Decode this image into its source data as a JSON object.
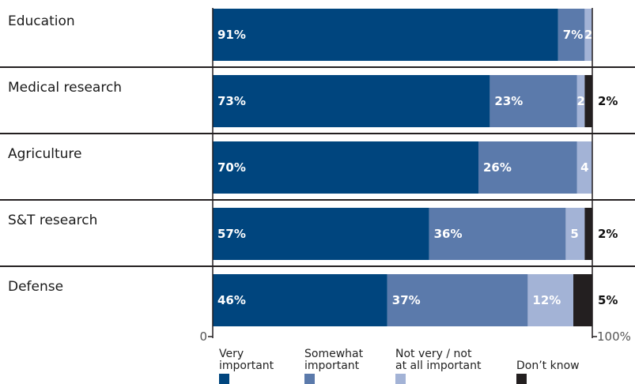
{
  "chart_data": {
    "type": "bar",
    "orientation": "horizontal",
    "stacked": true,
    "categories": [
      "Education",
      "Medical research",
      "Agriculture",
      "S&T research",
      "Defense"
    ],
    "series": [
      {
        "name": "Very important",
        "values": [
          91,
          73,
          70,
          57,
          46
        ],
        "color": "#00457e"
      },
      {
        "name": "Somewhat important",
        "values": [
          7,
          23,
          26,
          36,
          37
        ],
        "color": "#5b7aab"
      },
      {
        "name": "Not very / not at all important",
        "values": [
          2,
          2,
          4,
          5,
          12
        ],
        "color": "#a3b3d6"
      },
      {
        "name": "Don't know",
        "values": [
          0,
          2,
          0,
          2,
          5
        ],
        "color": "#231f20"
      }
    ],
    "bar_labels": [
      [
        "91%",
        "7%",
        "2",
        ""
      ],
      [
        "73%",
        "23%",
        "2",
        "2%"
      ],
      [
        "70%",
        "26%",
        "4",
        ""
      ],
      [
        "57%",
        "36%",
        "5",
        "2%"
      ],
      [
        "46%",
        "37%",
        "12%",
        "5%"
      ]
    ],
    "axis": {
      "min_label": "0",
      "max_label": "100%"
    },
    "xlim": [
      0,
      100
    ],
    "legend": {
      "placement": "bottom",
      "items": [
        {
          "lines": [
            "Very",
            "important"
          ],
          "color": "#00457e"
        },
        {
          "lines": [
            "Somewhat",
            "important"
          ],
          "color": "#5b7aab"
        },
        {
          "lines": [
            "Not very / not",
            "at all important"
          ],
          "color": "#a3b3d6"
        },
        {
          "lines": [
            "Don’t know"
          ],
          "color": "#231f20"
        }
      ]
    }
  }
}
